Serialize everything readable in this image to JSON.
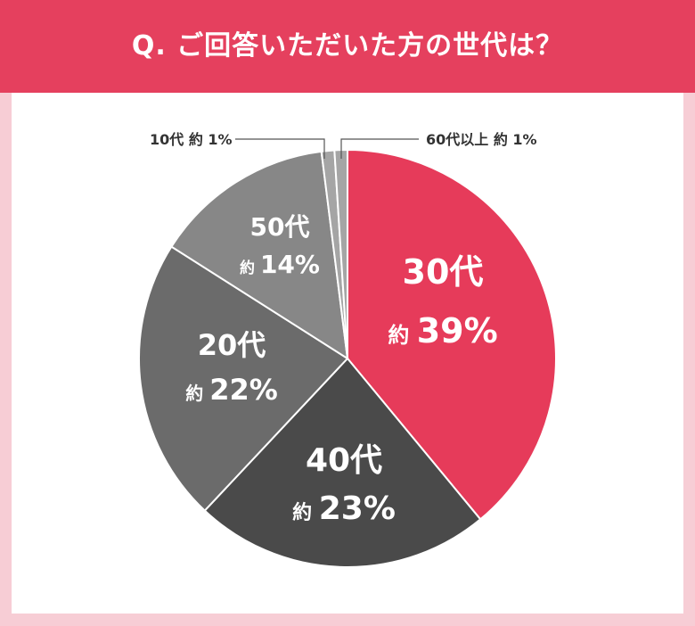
{
  "title": "Q. ご回答いただいた方の世代は？",
  "colors": {
    "accent": "#e5405e",
    "background": "#f7cdd5"
  },
  "chart_data": {
    "type": "pie",
    "title": "Q. ご回答いただいた方の世代は？",
    "unit": "%",
    "start": "12 o'clock",
    "direction": "clockwise",
    "slices": [
      {
        "label": "30代",
        "prefix": "約",
        "value": 39,
        "value_text": "39%",
        "color": "#e63b5a"
      },
      {
        "label": "40代",
        "prefix": "約",
        "value": 23,
        "value_text": "23%",
        "color": "#4a4a4a"
      },
      {
        "label": "20代",
        "prefix": "約",
        "value": 22,
        "value_text": "22%",
        "color": "#6b6b6b"
      },
      {
        "label": "50代",
        "prefix": "約",
        "value": 14,
        "value_text": "14%",
        "color": "#878787"
      },
      {
        "label": "10代",
        "prefix": "約",
        "value": 1,
        "value_text": "1%",
        "color": "#a5a5a5"
      },
      {
        "label": "60代以上",
        "prefix": "約",
        "value": 1,
        "value_text": "1%",
        "color": "#a5a5a5"
      }
    ]
  }
}
